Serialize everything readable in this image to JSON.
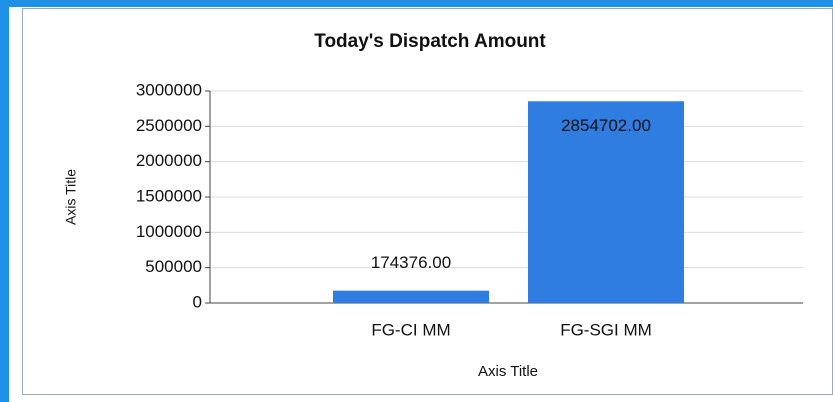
{
  "chart_data": {
    "type": "bar",
    "title": "Today's Dispatch Amount",
    "categories": [
      "FG-CI MM",
      "FG-SGI MM"
    ],
    "values": [
      174376,
      2854702
    ],
    "value_labels": [
      "174376.00",
      "2854702.00"
    ],
    "color": "#2f7de1",
    "x_label": "Axis Title",
    "y_label": "Axis Title",
    "ylim": [
      0,
      3000000
    ],
    "yticks": [
      0,
      500000,
      1000000,
      1500000,
      2000000,
      2500000,
      3000000
    ],
    "grid": true
  }
}
